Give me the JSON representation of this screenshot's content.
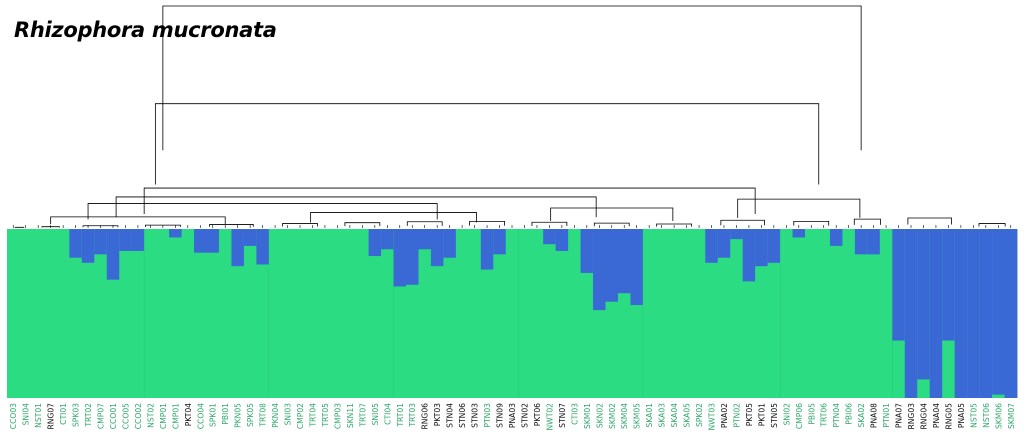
{
  "chart_data": {
    "type": "bar",
    "subtype": "stacked-admixture-with-dendrogram",
    "title": "Rhizophora mucronata",
    "colors": {
      "cluster_green": "#2bdc82",
      "cluster_blue": "#3a69d6",
      "label_green": "#2ea86a",
      "label_black": "#111111"
    },
    "series": [
      {
        "name": "Cluster 1",
        "color": "#2bdc82"
      },
      {
        "name": "Cluster 2",
        "color": "#3a69d6"
      }
    ],
    "samples": [
      {
        "label": "CCO03",
        "blue": 0.0,
        "color": "green"
      },
      {
        "label": "SNI04",
        "blue": 0.0,
        "color": "green"
      },
      {
        "label": "NST01",
        "blue": 0.0,
        "color": "green"
      },
      {
        "label": "RNG07",
        "blue": 0.0,
        "color": "black"
      },
      {
        "label": "CTI01",
        "blue": 0.0,
        "color": "green"
      },
      {
        "label": "SPK03",
        "blue": 0.17,
        "color": "green"
      },
      {
        "label": "TRT02",
        "blue": 0.2,
        "color": "green"
      },
      {
        "label": "CMP07",
        "blue": 0.15,
        "color": "green"
      },
      {
        "label": "CCO01",
        "blue": 0.3,
        "color": "green"
      },
      {
        "label": "CCO05",
        "blue": 0.13,
        "color": "green"
      },
      {
        "label": "CCO02",
        "blue": 0.13,
        "color": "green"
      },
      {
        "label": "NST02",
        "blue": 0.0,
        "color": "green"
      },
      {
        "label": "CMP01",
        "blue": 0.0,
        "color": "green"
      },
      {
        "label": "CMP01",
        "blue": 0.05,
        "color": "green"
      },
      {
        "label": "PKT04",
        "blue": 0.0,
        "color": "black"
      },
      {
        "label": "CCO04",
        "blue": 0.14,
        "color": "green"
      },
      {
        "label": "SPK01",
        "blue": 0.14,
        "color": "green"
      },
      {
        "label": "PBI01",
        "blue": 0.0,
        "color": "green"
      },
      {
        "label": "PKN05",
        "blue": 0.22,
        "color": "green"
      },
      {
        "label": "SPK05",
        "blue": 0.1,
        "color": "green"
      },
      {
        "label": "TRT08",
        "blue": 0.21,
        "color": "green"
      },
      {
        "label": "PKN04",
        "blue": 0.0,
        "color": "green"
      },
      {
        "label": "SNI03",
        "blue": 0.0,
        "color": "green"
      },
      {
        "label": "CMP02",
        "blue": 0.0,
        "color": "green"
      },
      {
        "label": "TRT04",
        "blue": 0.0,
        "color": "green"
      },
      {
        "label": "TRT05",
        "blue": 0.0,
        "color": "green"
      },
      {
        "label": "CMP03",
        "blue": 0.0,
        "color": "green"
      },
      {
        "label": "SKN11",
        "blue": 0.0,
        "color": "green"
      },
      {
        "label": "TRT07",
        "blue": 0.0,
        "color": "green"
      },
      {
        "label": "SNI05",
        "blue": 0.16,
        "color": "green"
      },
      {
        "label": "CTI04",
        "blue": 0.12,
        "color": "green"
      },
      {
        "label": "TRT01",
        "blue": 0.34,
        "color": "green"
      },
      {
        "label": "TRT03",
        "blue": 0.33,
        "color": "green"
      },
      {
        "label": "RNG06",
        "blue": 0.12,
        "color": "black"
      },
      {
        "label": "PKT03",
        "blue": 0.22,
        "color": "black"
      },
      {
        "label": "STN04",
        "blue": 0.17,
        "color": "black"
      },
      {
        "label": "STN06",
        "blue": 0.0,
        "color": "black"
      },
      {
        "label": "STN03",
        "blue": 0.0,
        "color": "black"
      },
      {
        "label": "PTN03",
        "blue": 0.24,
        "color": "green"
      },
      {
        "label": "STN09",
        "blue": 0.15,
        "color": "black"
      },
      {
        "label": "PNA03",
        "blue": 0.0,
        "color": "black"
      },
      {
        "label": "STN02",
        "blue": 0.0,
        "color": "black"
      },
      {
        "label": "PKT06",
        "blue": 0.0,
        "color": "black"
      },
      {
        "label": "NWT02",
        "blue": 0.09,
        "color": "green"
      },
      {
        "label": "STN07",
        "blue": 0.13,
        "color": "black"
      },
      {
        "label": "CTI03",
        "blue": 0.0,
        "color": "green"
      },
      {
        "label": "SKM01",
        "blue": 0.26,
        "color": "green"
      },
      {
        "label": "SKN02",
        "blue": 0.48,
        "color": "green"
      },
      {
        "label": "SKM02",
        "blue": 0.43,
        "color": "green"
      },
      {
        "label": "SKM04",
        "blue": 0.38,
        "color": "green"
      },
      {
        "label": "SKM05",
        "blue": 0.45,
        "color": "green"
      },
      {
        "label": "SKA01",
        "blue": 0.0,
        "color": "green"
      },
      {
        "label": "SKA03",
        "blue": 0.0,
        "color": "green"
      },
      {
        "label": "SKA04",
        "blue": 0.0,
        "color": "green"
      },
      {
        "label": "SKA05",
        "blue": 0.0,
        "color": "green"
      },
      {
        "label": "SPK02",
        "blue": 0.0,
        "color": "green"
      },
      {
        "label": "NWT03",
        "blue": 0.2,
        "color": "green"
      },
      {
        "label": "PNA02",
        "blue": 0.17,
        "color": "black"
      },
      {
        "label": "PTN02",
        "blue": 0.06,
        "color": "green"
      },
      {
        "label": "PKT05",
        "blue": 0.31,
        "color": "black"
      },
      {
        "label": "PKT01",
        "blue": 0.22,
        "color": "black"
      },
      {
        "label": "STN05",
        "blue": 0.2,
        "color": "black"
      },
      {
        "label": "SNI02",
        "blue": 0.0,
        "color": "green"
      },
      {
        "label": "CMP06",
        "blue": 0.05,
        "color": "green"
      },
      {
        "label": "PBI05",
        "blue": 0.0,
        "color": "green"
      },
      {
        "label": "TRT06",
        "blue": 0.0,
        "color": "green"
      },
      {
        "label": "PTN04",
        "blue": 0.1,
        "color": "green"
      },
      {
        "label": "PBI06",
        "blue": 0.0,
        "color": "green"
      },
      {
        "label": "SKA02",
        "blue": 0.15,
        "color": "green"
      },
      {
        "label": "PNA08",
        "blue": 0.15,
        "color": "black"
      },
      {
        "label": "PTN01",
        "blue": 0.0,
        "color": "green"
      },
      {
        "label": "PNA07",
        "blue": 0.66,
        "color": "black"
      },
      {
        "label": "RNG03",
        "blue": 1.0,
        "color": "black"
      },
      {
        "label": "RNG04",
        "blue": 0.89,
        "color": "black"
      },
      {
        "label": "PNA04",
        "blue": 1.0,
        "color": "black"
      },
      {
        "label": "RNG05",
        "blue": 0.66,
        "color": "black"
      },
      {
        "label": "PNA05",
        "blue": 1.0,
        "color": "black"
      },
      {
        "label": "NST05",
        "blue": 1.0,
        "color": "green"
      },
      {
        "label": "NST06",
        "blue": 1.0,
        "color": "green"
      },
      {
        "label": "SKM06",
        "blue": 0.98,
        "color": "green"
      },
      {
        "label": "SKM07",
        "blue": 1.0,
        "color": "green"
      }
    ],
    "dendrogram": {
      "leaf_count": 81,
      "merges": [
        {
          "left_leaf": 0,
          "right_leaf": 1,
          "height": 0.003
        },
        {
          "left_leaf": 2,
          "right_leaf": 4,
          "height": 0.006
        },
        {
          "left_leaf": 5,
          "right_leaf": 9,
          "height": 0.01
        },
        {
          "left_leaf": 10,
          "right_leaf": 14,
          "height": 0.013
        },
        {
          "left_leaf": 15,
          "right_leaf": 20,
          "height": 0.016
        },
        {
          "left_leaf": 21,
          "right_leaf": 25,
          "height": 0.02
        },
        {
          "left_leaf": 26,
          "right_leaf": 30,
          "height": 0.024
        },
        {
          "left_leaf": 31,
          "right_leaf": 35,
          "height": 0.028
        },
        {
          "left_leaf": 36,
          "right_leaf": 40,
          "height": 0.03
        },
        {
          "left_leaf": 41,
          "right_leaf": 45,
          "height": 0.026
        },
        {
          "left_leaf": 46,
          "right_leaf": 50,
          "height": 0.022
        },
        {
          "left_leaf": 51,
          "right_leaf": 55,
          "height": 0.018
        },
        {
          "left_leaf": 56,
          "right_leaf": 61,
          "height": 0.035
        },
        {
          "left_leaf": 62,
          "right_leaf": 66,
          "height": 0.03
        },
        {
          "left_leaf": 67,
          "right_leaf": 70,
          "height": 0.04
        },
        {
          "left_leaf": 71,
          "right_leaf": 76,
          "height": 0.045
        },
        {
          "left_leaf": 77,
          "right_leaf": 80,
          "height": 0.02
        },
        {
          "left_leaf": 0,
          "right_leaf": 20,
          "height": 0.05
        },
        {
          "left_leaf": 21,
          "right_leaf": 40,
          "height": 0.07
        },
        {
          "left_leaf": 41,
          "right_leaf": 55,
          "height": 0.09
        },
        {
          "left_leaf": 56,
          "right_leaf": 70,
          "height": 0.13
        },
        {
          "left_leaf": 0,
          "right_leaf": 40,
          "height": 0.11
        },
        {
          "left_leaf": 0,
          "right_leaf": 55,
          "height": 0.14
        },
        {
          "left_leaf": 0,
          "right_leaf": 70,
          "height": 0.18
        },
        {
          "left_leaf": 0,
          "right_leaf": 76,
          "height": 0.56
        },
        {
          "left_leaf": 0,
          "right_leaf": 80,
          "height": 1.0
        }
      ]
    }
  }
}
